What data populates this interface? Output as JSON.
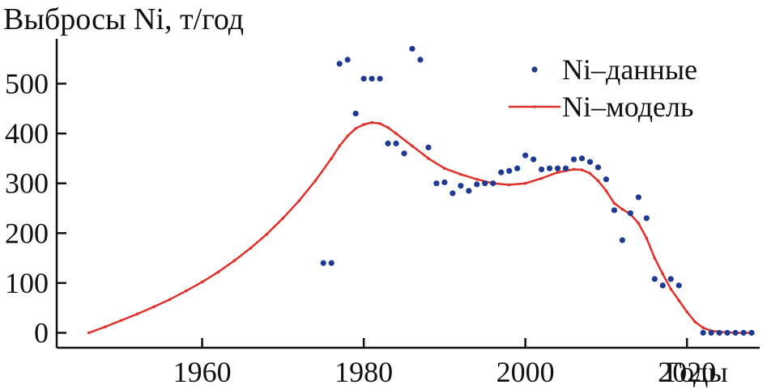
{
  "chart_data": {
    "type": "scatter",
    "title": "",
    "ylabel": "Выбросы Ni, т/год",
    "xlabel": "Годы",
    "xlim": [
      1942,
      2029
    ],
    "ylim": [
      -30,
      590
    ],
    "x_ticks": [
      {
        "value": 1960,
        "label": "1960"
      },
      {
        "value": 1980,
        "label": "1980"
      },
      {
        "value": 2000,
        "label": "2000"
      },
      {
        "value": 2020,
        "label": "2020"
      }
    ],
    "y_ticks": [
      {
        "value": 0,
        "label": "0"
      },
      {
        "value": 100,
        "label": "100"
      },
      {
        "value": 200,
        "label": "200"
      },
      {
        "value": 300,
        "label": "300"
      },
      {
        "value": 400,
        "label": "400"
      },
      {
        "value": 500,
        "label": "500"
      }
    ],
    "legend_position": "top-right",
    "colors": {
      "data": "#1f3a93",
      "model": "#e0302a"
    },
    "series": [
      {
        "name": "Ni–данные",
        "kind": "scatter",
        "points": [
          [
            1975,
            140
          ],
          [
            1976,
            140
          ],
          [
            1977,
            540
          ],
          [
            1978,
            548
          ],
          [
            1979,
            440
          ],
          [
            1980,
            510
          ],
          [
            1981,
            510
          ],
          [
            1982,
            510
          ],
          [
            1983,
            380
          ],
          [
            1984,
            380
          ],
          [
            1985,
            360
          ],
          [
            1986,
            570
          ],
          [
            1987,
            548
          ],
          [
            1988,
            372
          ],
          [
            1989,
            300
          ],
          [
            1990,
            302
          ],
          [
            1991,
            280
          ],
          [
            1992,
            295
          ],
          [
            1993,
            285
          ],
          [
            1994,
            298
          ],
          [
            1995,
            300
          ],
          [
            1996,
            300
          ],
          [
            1997,
            322
          ],
          [
            1998,
            325
          ],
          [
            1999,
            330
          ],
          [
            2000,
            356
          ],
          [
            2001,
            348
          ],
          [
            2002,
            328
          ],
          [
            2003,
            330
          ],
          [
            2004,
            330
          ],
          [
            2005,
            330
          ],
          [
            2006,
            348
          ],
          [
            2007,
            350
          ],
          [
            2008,
            343
          ],
          [
            2009,
            332
          ],
          [
            2010,
            308
          ],
          [
            2011,
            246
          ],
          [
            2012,
            186
          ],
          [
            2013,
            240
          ],
          [
            2014,
            272
          ],
          [
            2015,
            230
          ],
          [
            2016,
            108
          ],
          [
            2017,
            95
          ],
          [
            2018,
            108
          ],
          [
            2019,
            95
          ],
          [
            2022,
            0
          ],
          [
            2023,
            0
          ],
          [
            2024,
            0
          ],
          [
            2025,
            0
          ],
          [
            2026,
            0
          ],
          [
            2027,
            0
          ],
          [
            2028,
            0
          ]
        ]
      },
      {
        "name": "Ni–модель",
        "kind": "line",
        "points": [
          [
            1946,
            0
          ],
          [
            1948,
            12
          ],
          [
            1950,
            25
          ],
          [
            1952,
            38
          ],
          [
            1954,
            52
          ],
          [
            1956,
            67
          ],
          [
            1958,
            84
          ],
          [
            1960,
            102
          ],
          [
            1962,
            122
          ],
          [
            1964,
            145
          ],
          [
            1966,
            170
          ],
          [
            1968,
            198
          ],
          [
            1970,
            230
          ],
          [
            1972,
            265
          ],
          [
            1974,
            305
          ],
          [
            1976,
            350
          ],
          [
            1977,
            375
          ],
          [
            1978,
            395
          ],
          [
            1979,
            410
          ],
          [
            1980,
            418
          ],
          [
            1981,
            422
          ],
          [
            1982,
            420
          ],
          [
            1983,
            412
          ],
          [
            1984,
            400
          ],
          [
            1986,
            375
          ],
          [
            1988,
            350
          ],
          [
            1990,
            330
          ],
          [
            1992,
            318
          ],
          [
            1994,
            308
          ],
          [
            1996,
            300
          ],
          [
            1998,
            297
          ],
          [
            2000,
            300
          ],
          [
            2002,
            310
          ],
          [
            2004,
            322
          ],
          [
            2006,
            328
          ],
          [
            2007,
            327
          ],
          [
            2008,
            320
          ],
          [
            2009,
            305
          ],
          [
            2010,
            285
          ],
          [
            2011,
            260
          ],
          [
            2012,
            248
          ],
          [
            2013,
            238
          ],
          [
            2014,
            220
          ],
          [
            2015,
            190
          ],
          [
            2016,
            150
          ],
          [
            2017,
            118
          ],
          [
            2018,
            88
          ],
          [
            2019,
            65
          ],
          [
            2020,
            42
          ],
          [
            2021,
            22
          ],
          [
            2022,
            10
          ],
          [
            2023,
            4
          ],
          [
            2024,
            2
          ],
          [
            2026,
            0
          ],
          [
            2028,
            0
          ]
        ]
      }
    ]
  }
}
